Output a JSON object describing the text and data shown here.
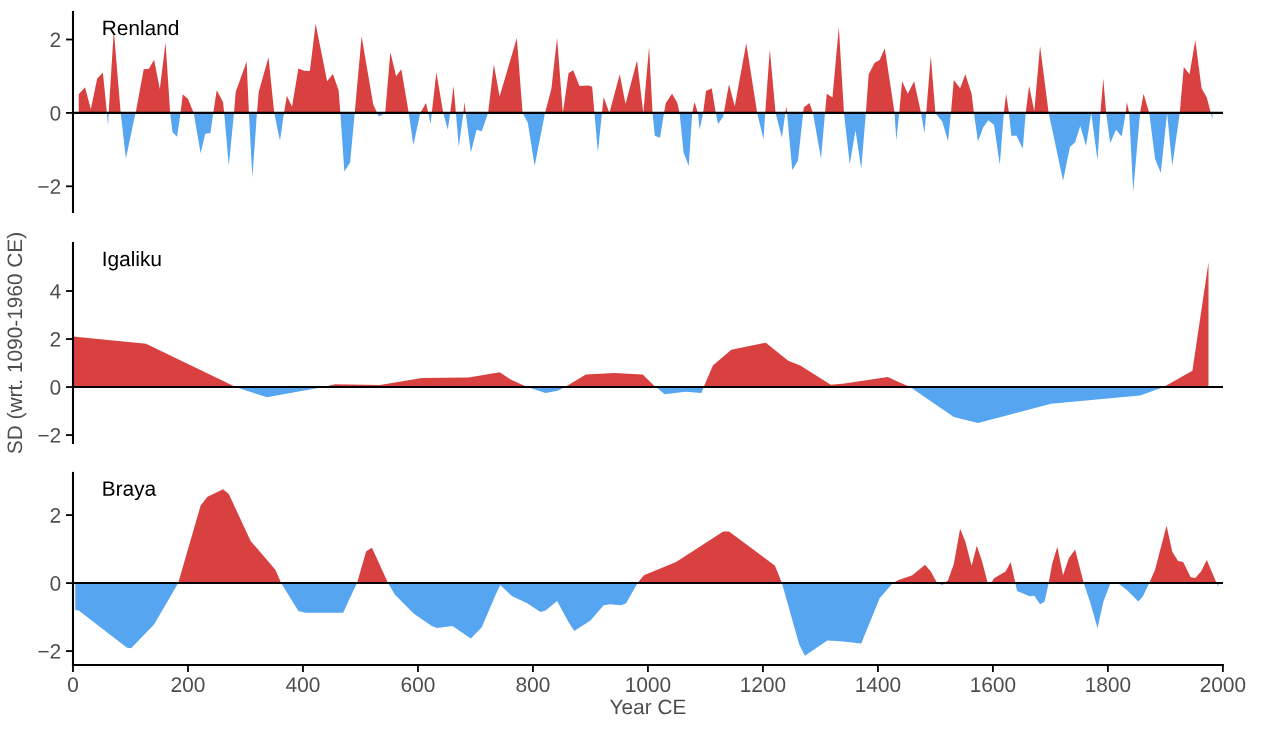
{
  "chart_data": [
    {
      "type": "area",
      "title": "Renland",
      "xlim": [
        0,
        2000
      ],
      "ylim": [
        -2.7,
        2.75
      ],
      "yticks": [
        -2,
        0,
        2
      ],
      "tick_labels": "y",
      "grid": false,
      "ref_lines": [
        {
          "axis": "y",
          "value": 0,
          "color": "#000000"
        }
      ],
      "series": [
        {
          "color": "#d94141",
          "x": [
            10,
            21,
            31,
            42,
            52,
            59,
            62,
            71,
            83,
            109,
            123,
            132,
            141,
            151,
            161,
            169,
            187,
            191,
            200,
            210,
            244,
            250,
            261,
            263,
            280,
            283,
            302,
            306,
            320,
            323,
            340,
            350,
            367,
            372,
            381,
            392,
            402,
            412,
            422,
            442,
            452,
            462,
            465,
            490,
            502,
            522,
            529,
            543,
            552,
            562,
            571,
            584,
            604,
            614,
            618,
            624,
            632,
            644,
            656,
            662,
            666,
            679,
            681,
            683,
            722,
            732,
            742,
            772,
            782,
            821,
            832,
            842,
            852,
            862,
            870,
            881,
            897,
            903,
            907,
            920,
            923,
            933,
            951,
            961,
            981,
            992,
            1002,
            1008,
            1028,
            1031,
            1042,
            1051,
            1055,
            1077,
            1081,
            1087,
            1096,
            1101,
            1111,
            1118,
            1132,
            1141,
            1151,
            1171,
            1190,
            1204,
            1212,
            1222,
            1239,
            1241,
            1242,
            1270,
            1271,
            1281,
            1287,
            1308,
            1311,
            1321,
            1332,
            1341,
            1379,
            1384,
            1394,
            1403,
            1412,
            1429,
            1437,
            1442,
            1452,
            1463,
            1475,
            1484,
            1492,
            1500,
            1527,
            1532,
            1543,
            1552,
            1563,
            1567,
            1619,
            1623,
            1628,
            1657,
            1663,
            1672,
            1682,
            1697,
            1771,
            1787,
            1792,
            1797,
            1831,
            1833,
            1837,
            1856,
            1862,
            1872,
            1903,
            1925,
            1932,
            1942,
            1952,
            1963,
            1972,
            1979
          ],
          "values": [
            0.51,
            0.7,
            0.1,
            0.93,
            1.1,
            0,
            0,
            2.25,
            0,
            0,
            1.19,
            1.2,
            1.45,
            0.65,
            1.92,
            0,
            0,
            0.51,
            0.38,
            0,
            0,
            0.62,
            0.3,
            0,
            0,
            0.57,
            1.4,
            0,
            0,
            0.57,
            1.52,
            0,
            0,
            0.47,
            0.17,
            1.21,
            1.15,
            1.14,
            2.43,
            0.86,
            1.06,
            0.62,
            0,
            0,
            2.09,
            0.24,
            0,
            0,
            1.66,
            1.0,
            1.19,
            0,
            0,
            0.27,
            0,
            0,
            1.11,
            0,
            0,
            0.73,
            0,
            0,
            0.3,
            0,
            0,
            1.32,
            0.45,
            2.04,
            0,
            0,
            0.65,
            2.05,
            0,
            1.09,
            1.16,
            0.73,
            0.75,
            0.71,
            0,
            0,
            0.43,
            0,
            1.05,
            0.24,
            1.43,
            0,
            1.8,
            0,
            0,
            0.26,
            0.52,
            0.28,
            0,
            0,
            0.3,
            0,
            0,
            0.6,
            0.67,
            0,
            0,
            0.78,
            0.18,
            1.9,
            0,
            0,
            1.73,
            0,
            0,
            0.18,
            0,
            0,
            0.15,
            0.27,
            0,
            0,
            0.52,
            0.42,
            2.34,
            0,
            0,
            1.05,
            1.36,
            1.44,
            1.76,
            0,
            0,
            0.86,
            0.52,
            0.86,
            0,
            0,
            1.55,
            0,
            0,
            0.9,
            0.67,
            1.05,
            0.52,
            0,
            0,
            0.52,
            0,
            0,
            0.73,
            0.05,
            1.82,
            0,
            0,
            0,
            0.94,
            0,
            0,
            0.3,
            0,
            0,
            0.52,
            0,
            0,
            0,
            1.25,
            1.05,
            1.98,
            0.67,
            0.42,
            0
          ]
        },
        {
          "color": "#56a5f0",
          "x": [
            59,
            61,
            62,
            83,
            92,
            108,
            109,
            169,
            173,
            181,
            187,
            210,
            222,
            230,
            239,
            244,
            263,
            271,
            280,
            306,
            312,
            320,
            350,
            360,
            367,
            465,
            472,
            482,
            490,
            529,
            532,
            543,
            584,
            592,
            604,
            618,
            622,
            624,
            644,
            652,
            656,
            666,
            671,
            679,
            683,
            692,
            702,
            711,
            722,
            782,
            791,
            803,
            821,
            852,
            907,
            913,
            920,
            933,
            992,
            1008,
            1012,
            1021,
            1028,
            1055,
            1062,
            1071,
            1077,
            1087,
            1090,
            1096,
            1118,
            1122,
            1131,
            1132,
            1190,
            1201,
            1204,
            1222,
            1233,
            1239,
            1242,
            1251,
            1261,
            1270,
            1287,
            1301,
            1308,
            1341,
            1351,
            1361,
            1371,
            1379,
            1429,
            1432,
            1437,
            1475,
            1481,
            1484,
            1500,
            1512,
            1522,
            1527,
            1567,
            1574,
            1583,
            1592,
            1602,
            1612,
            1619,
            1628,
            1632,
            1641,
            1652,
            1657,
            1697,
            1722,
            1734,
            1743,
            1752,
            1762,
            1771,
            1782,
            1787,
            1797,
            1804,
            1814,
            1824,
            1831,
            1837,
            1844,
            1856,
            1872,
            1882,
            1892,
            1903,
            1912,
            1925,
            1979,
            1982
          ],
          "values": [
            0,
            -0.35,
            0,
            0,
            -1.24,
            -0.05,
            0,
            0,
            -0.52,
            -0.65,
            0,
            0,
            -1.1,
            -0.57,
            -0.55,
            0,
            0,
            -1.45,
            0,
            0,
            -1.76,
            0,
            0,
            -0.76,
            0,
            0,
            -1.6,
            -1.35,
            0,
            0,
            -0.1,
            0,
            0,
            -0.88,
            0,
            0,
            -0.31,
            0,
            0,
            -0.46,
            0,
            0,
            -0.93,
            0,
            0,
            -1.08,
            -0.46,
            -0.5,
            0,
            0,
            -0.26,
            -1.45,
            0,
            0,
            0,
            -1.08,
            0,
            0,
            0,
            0,
            -0.62,
            -0.68,
            0,
            0,
            -1.08,
            -1.45,
            0,
            0,
            -0.46,
            0,
            0,
            -0.3,
            -0.1,
            0,
            0,
            -0.72,
            0,
            0,
            -0.67,
            0,
            0,
            -1.56,
            -1.3,
            0,
            0,
            -1.25,
            0,
            0,
            -1.4,
            -0.47,
            -1.52,
            0,
            0,
            -0.76,
            0,
            0,
            -0.55,
            0,
            0,
            -0.24,
            -0.77,
            0,
            0,
            -0.78,
            -0.4,
            -0.2,
            -0.33,
            -1.42,
            0,
            0,
            -0.62,
            -0.62,
            -0.98,
            0,
            0,
            -1.85,
            -0.93,
            -0.8,
            -0.36,
            -0.9,
            0,
            -1.3,
            0,
            0,
            -0.83,
            -0.46,
            -0.64,
            0,
            0,
            -2.15,
            0,
            0,
            -1.25,
            -1.64,
            0,
            -1.45,
            0,
            0,
            -0.17
          ]
        }
      ]
    },
    {
      "type": "area",
      "title": "Igaliku",
      "ylabel": "SD (wrt. 1090-1960 CE)",
      "xlim": [
        0,
        2000
      ],
      "ylim": [
        -2.33,
        6.0
      ],
      "yticks": [
        -2,
        0,
        2,
        4
      ],
      "tick_labels": "y",
      "grid": false,
      "ref_lines": [
        {
          "axis": "y",
          "value": 0,
          "color": "#000000"
        }
      ],
      "series": [
        {
          "color": "#d94141",
          "x": [
            0,
            127,
            283,
            436,
            456,
            534,
            607,
            688,
            742,
            762,
            790,
            856,
            892,
            941,
            991,
            1009,
            1014,
            1097,
            1113,
            1145,
            1205,
            1244,
            1265,
            1318,
            1342,
            1417,
            1437,
            1456,
            1897,
            1947,
            1975
          ],
          "values": [
            2.1,
            1.8,
            0,
            0,
            0.12,
            0.08,
            0.38,
            0.4,
            0.62,
            0.3,
            0,
            0,
            0.52,
            0.58,
            0.52,
            0.1,
            0,
            0,
            0.9,
            1.55,
            1.85,
            1.1,
            0.9,
            0.1,
            0.15,
            0.42,
            0.2,
            0,
            0,
            0.68,
            5.2
          ]
        },
        {
          "color": "#56a5f0",
          "x": [
            283,
            337,
            436,
            790,
            822,
            843,
            856,
            1014,
            1029,
            1065,
            1093,
            1097,
            1456,
            1532,
            1574,
            1701,
            1856,
            1897
          ],
          "values": [
            0,
            -0.42,
            0,
            0,
            -0.25,
            -0.15,
            0,
            0,
            -0.3,
            -0.2,
            -0.25,
            0,
            0,
            -1.25,
            -1.5,
            -0.7,
            -0.35,
            0
          ]
        }
      ]
    },
    {
      "type": "area",
      "title": "Braya",
      "xlabel": "Year CE",
      "xlim": [
        0,
        2000
      ],
      "xticks": [
        0,
        200,
        400,
        600,
        800,
        1000,
        1200,
        1400,
        1600,
        1800,
        2000
      ],
      "ylim": [
        -2.41,
        3.24
      ],
      "yticks": [
        -2,
        0,
        2
      ],
      "grid": false,
      "ref_lines": [
        {
          "axis": "y",
          "value": 0,
          "color": "#000000"
        }
      ],
      "series": [
        {
          "color": "#d94141",
          "x": [
            183,
            222,
            234,
            261,
            271,
            309,
            352,
            362,
            494,
            510,
            520,
            548,
            982,
            993,
            1049,
            1131,
            1141,
            1221,
            1233,
            1426,
            1436,
            1460,
            1482,
            1492,
            1503,
            1516,
            1522,
            1532,
            1543,
            1552,
            1563,
            1572,
            1581,
            1591,
            1597,
            1602,
            1622,
            1631,
            1639,
            1697,
            1703,
            1712,
            1722,
            1732,
            1743,
            1758,
            1872,
            1882,
            1902,
            1912,
            1922,
            1931,
            1944,
            1952,
            1962,
            1972,
            1989
          ],
          "values": [
            0,
            2.28,
            2.54,
            2.76,
            2.62,
            1.24,
            0.39,
            0,
            0,
            0.94,
            1.04,
            0,
            0,
            0.23,
            0.62,
            1.52,
            1.52,
            0.51,
            0,
            0,
            0.09,
            0.23,
            0.54,
            0.34,
            0,
            0,
            0.08,
            0.56,
            1.6,
            1.22,
            0.51,
            1.1,
            0.65,
            0,
            0,
            0.14,
            0.34,
            0.62,
            0,
            0,
            0.56,
            1.07,
            0.23,
            0.73,
            0.99,
            0,
            0,
            0.39,
            1.69,
            0.92,
            0.65,
            0.62,
            0.17,
            0.15,
            0.34,
            0.68,
            0
          ]
        },
        {
          "color": "#56a5f0",
          "x": [
            4,
            10,
            94,
            101,
            141,
            183,
            362,
            392,
            404,
            470,
            480,
            494,
            548,
            560,
            593,
            624,
            633,
            660,
            692,
            711,
            734,
            743,
            764,
            790,
            813,
            822,
            842,
            863,
            872,
            900,
            923,
            934,
            953,
            962,
            982,
            1233,
            1263,
            1273,
            1312,
            1335,
            1371,
            1403,
            1426,
            1503,
            1512,
            1516,
            1639,
            1642,
            1664,
            1672,
            1682,
            1690,
            1697,
            1758,
            1769,
            1782,
            1792,
            1804,
            1819,
            1833,
            1853,
            1861,
            1872,
            1989,
            1992
          ],
          "values": [
            -0.79,
            -0.81,
            -1.9,
            -1.92,
            -1.22,
            0,
            0,
            -0.82,
            -0.87,
            -0.87,
            -0.5,
            0,
            0,
            -0.34,
            -0.9,
            -1.26,
            -1.32,
            -1.26,
            -1.63,
            -1.3,
            -0.39,
            -0.06,
            -0.39,
            -0.59,
            -0.85,
            -0.81,
            -0.53,
            -1.18,
            -1.41,
            -1.1,
            -0.65,
            -0.62,
            -0.65,
            -0.59,
            0,
            0,
            -1.8,
            -2.14,
            -1.69,
            -1.71,
            -1.78,
            -0.45,
            0,
            0,
            -0.06,
            0,
            0,
            -0.23,
            -0.39,
            -0.37,
            -0.62,
            -0.54,
            0,
            0,
            -0.56,
            -1.33,
            -0.56,
            -0.02,
            -0.02,
            -0.2,
            -0.54,
            -0.39,
            0,
            0,
            -0.11
          ]
        }
      ]
    }
  ]
}
